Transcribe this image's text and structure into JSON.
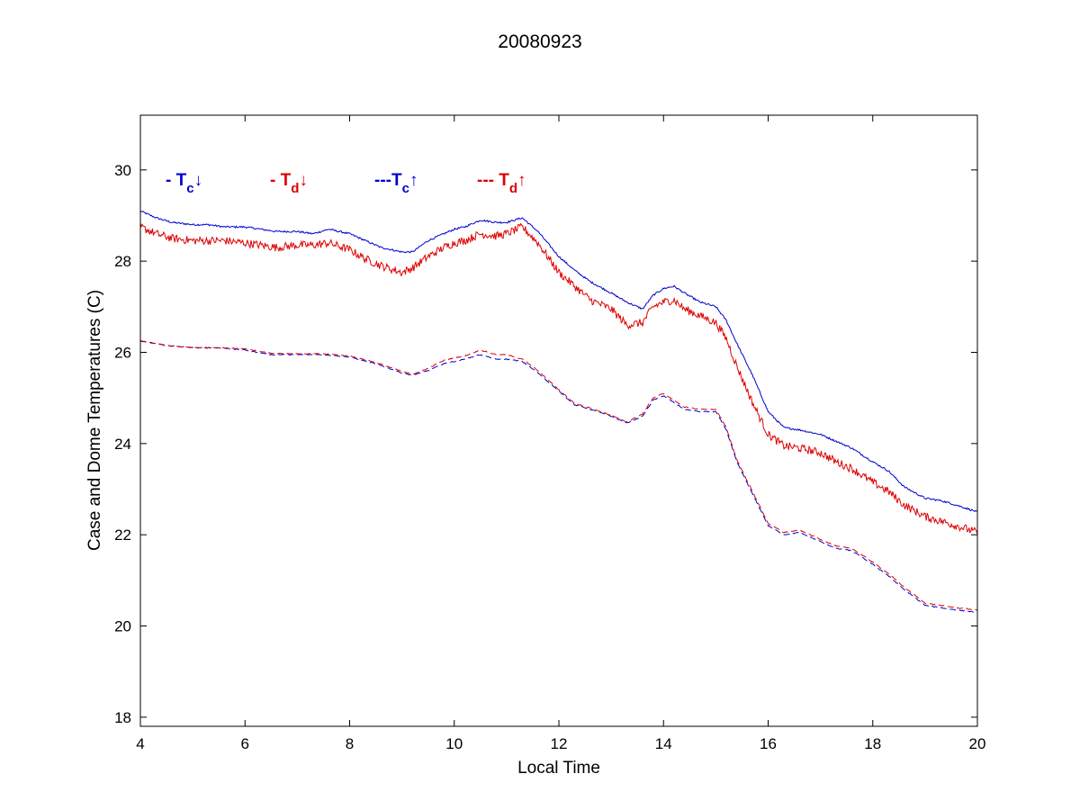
{
  "chart_data": {
    "type": "line",
    "title": "20080923",
    "xlabel": "Local Time",
    "ylabel": "Case and Dome Temperatures (C)",
    "xlim": [
      4,
      20
    ],
    "ylim": [
      17.8,
      31.2
    ],
    "xticks": [
      4,
      6,
      8,
      10,
      12,
      14,
      16,
      18,
      20
    ],
    "yticks": [
      18,
      20,
      22,
      24,
      26,
      28,
      30
    ],
    "grid": false,
    "legend_placement": "top-left",
    "legend": [
      {
        "prefix": "- T",
        "sub": "c",
        "arrow": "↓",
        "color": "#0000cc"
      },
      {
        "prefix": "- T",
        "sub": "d",
        "arrow": "↓",
        "color": "#dd0000"
      },
      {
        "prefix": "---T",
        "sub": "c",
        "arrow": "↑",
        "color": "#0000cc"
      },
      {
        "prefix": "--- T",
        "sub": "d",
        "arrow": "↑",
        "color": "#dd0000"
      }
    ],
    "series": [
      {
        "color": "#0000cc",
        "style": "solid",
        "noise": 0.02,
        "x": [
          4.0,
          4.3,
          4.6,
          5.0,
          5.3,
          5.6,
          6.0,
          6.3,
          6.6,
          7.0,
          7.3,
          7.6,
          8.0,
          8.3,
          8.6,
          9.0,
          9.2,
          9.5,
          9.8,
          10.0,
          10.2,
          10.5,
          10.8,
          11.0,
          11.3,
          11.6,
          12.0,
          12.3,
          12.6,
          13.0,
          13.3,
          13.6,
          13.8,
          14.0,
          14.2,
          14.4,
          14.7,
          15.0,
          15.2,
          15.4,
          15.7,
          16.0,
          16.3,
          16.6,
          17.0,
          17.3,
          17.6,
          18.0,
          18.3,
          18.6,
          19.0,
          19.3,
          19.6,
          20.0
        ],
        "y": [
          29.1,
          28.95,
          28.85,
          28.8,
          28.8,
          28.75,
          28.75,
          28.7,
          28.65,
          28.65,
          28.6,
          28.7,
          28.6,
          28.45,
          28.3,
          28.2,
          28.2,
          28.45,
          28.6,
          28.7,
          28.75,
          28.9,
          28.85,
          28.85,
          28.95,
          28.65,
          28.1,
          27.8,
          27.55,
          27.3,
          27.1,
          26.95,
          27.25,
          27.4,
          27.45,
          27.3,
          27.1,
          27.0,
          26.7,
          26.2,
          25.5,
          24.7,
          24.35,
          24.3,
          24.2,
          24.05,
          23.9,
          23.6,
          23.4,
          23.05,
          22.8,
          22.75,
          22.65,
          22.5
        ]
      },
      {
        "color": "#dd0000",
        "style": "solid",
        "noise": 0.09,
        "x": [
          4.0,
          4.3,
          4.6,
          5.0,
          5.3,
          5.6,
          6.0,
          6.3,
          6.6,
          7.0,
          7.3,
          7.6,
          8.0,
          8.3,
          8.6,
          9.0,
          9.2,
          9.5,
          9.8,
          10.0,
          10.2,
          10.5,
          10.8,
          11.0,
          11.3,
          11.6,
          12.0,
          12.3,
          12.6,
          13.0,
          13.3,
          13.6,
          13.8,
          14.0,
          14.2,
          14.4,
          14.7,
          15.0,
          15.2,
          15.4,
          15.7,
          16.0,
          16.3,
          16.6,
          17.0,
          17.3,
          17.6,
          18.0,
          18.3,
          18.6,
          19.0,
          19.3,
          19.6,
          20.0
        ],
        "y": [
          28.75,
          28.6,
          28.5,
          28.45,
          28.45,
          28.45,
          28.4,
          28.35,
          28.3,
          28.35,
          28.35,
          28.4,
          28.25,
          28.05,
          27.9,
          27.75,
          27.85,
          28.1,
          28.3,
          28.4,
          28.45,
          28.6,
          28.55,
          28.6,
          28.75,
          28.4,
          27.75,
          27.45,
          27.15,
          26.95,
          26.6,
          26.65,
          27.0,
          27.1,
          27.15,
          26.95,
          26.8,
          26.65,
          26.3,
          25.7,
          24.9,
          24.2,
          23.95,
          23.9,
          23.8,
          23.6,
          23.45,
          23.15,
          22.95,
          22.65,
          22.4,
          22.3,
          22.2,
          22.05
        ]
      },
      {
        "color": "#0000cc",
        "style": "dashed",
        "noise": 0.01,
        "x": [
          4.0,
          4.5,
          5.0,
          5.5,
          6.0,
          6.5,
          7.0,
          7.5,
          8.0,
          8.5,
          9.0,
          9.2,
          9.5,
          9.8,
          10.0,
          10.2,
          10.5,
          10.8,
          11.0,
          11.3,
          11.6,
          12.0,
          12.3,
          12.6,
          13.0,
          13.3,
          13.6,
          13.8,
          14.0,
          14.2,
          14.4,
          14.7,
          15.0,
          15.2,
          15.4,
          15.7,
          16.0,
          16.3,
          16.6,
          16.8,
          17.0,
          17.3,
          17.6,
          18.0,
          18.3,
          18.6,
          19.0,
          19.3,
          19.6,
          20.0
        ],
        "y": [
          26.25,
          26.15,
          26.1,
          26.1,
          26.05,
          25.95,
          25.95,
          25.95,
          25.9,
          25.75,
          25.55,
          25.5,
          25.6,
          25.75,
          25.8,
          25.85,
          25.95,
          25.85,
          25.85,
          25.8,
          25.55,
          25.15,
          24.85,
          24.75,
          24.6,
          24.45,
          24.6,
          24.95,
          25.05,
          24.9,
          24.75,
          24.7,
          24.7,
          24.3,
          23.6,
          22.9,
          22.2,
          22.0,
          22.05,
          21.95,
          21.85,
          21.7,
          21.65,
          21.35,
          21.1,
          20.8,
          20.45,
          20.4,
          20.35,
          20.3
        ]
      },
      {
        "color": "#dd0000",
        "style": "dashed",
        "noise": 0.01,
        "x": [
          4.0,
          4.5,
          5.0,
          5.5,
          6.0,
          6.5,
          7.0,
          7.5,
          8.0,
          8.5,
          9.0,
          9.2,
          9.5,
          9.8,
          10.0,
          10.2,
          10.5,
          10.8,
          11.0,
          11.3,
          11.6,
          12.0,
          12.3,
          12.6,
          13.0,
          13.3,
          13.6,
          13.8,
          14.0,
          14.2,
          14.4,
          14.7,
          15.0,
          15.2,
          15.4,
          15.7,
          16.0,
          16.3,
          16.6,
          16.8,
          17.0,
          17.3,
          17.6,
          18.0,
          18.3,
          18.6,
          19.0,
          19.3,
          19.6,
          20.0
        ],
        "y": [
          26.25,
          26.15,
          26.1,
          26.1,
          26.08,
          25.98,
          25.97,
          25.97,
          25.92,
          25.78,
          25.58,
          25.52,
          25.65,
          25.82,
          25.88,
          25.92,
          26.05,
          25.95,
          25.95,
          25.85,
          25.6,
          25.18,
          24.88,
          24.78,
          24.62,
          24.47,
          24.65,
          25.0,
          25.1,
          24.95,
          24.8,
          24.75,
          24.75,
          24.35,
          23.65,
          22.95,
          22.25,
          22.05,
          22.1,
          22.0,
          21.9,
          21.75,
          21.7,
          21.4,
          21.15,
          20.85,
          20.5,
          20.45,
          20.4,
          20.35
        ]
      }
    ]
  }
}
